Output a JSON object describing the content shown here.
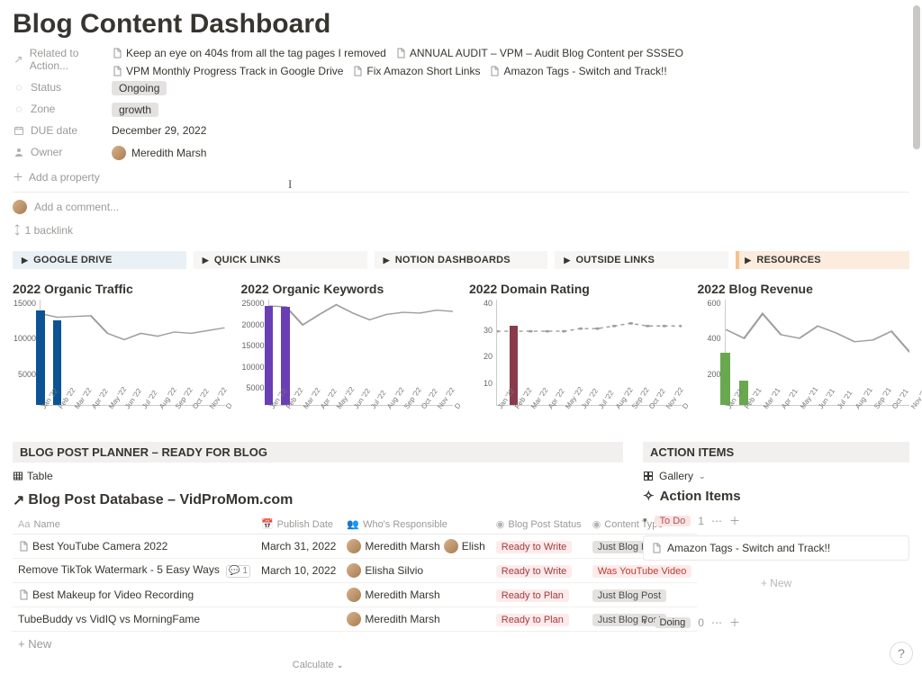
{
  "title": "Blog Content Dashboard",
  "propLabels": {
    "related": "Related to Action...",
    "status": "Status",
    "zone": "Zone",
    "due": "DUE date",
    "owner": "Owner",
    "addProperty": "Add a property",
    "addComment": "Add a comment...",
    "backlink": "1 backlink"
  },
  "related": [
    "Keep an eye on 404s from all the tag pages I removed",
    "ANNUAL AUDIT – VPM – Audit Blog Content per SSSEO",
    "VPM Monthly Progress Track in Google Drive",
    "Fix Amazon Short Links",
    "Amazon Tags - Switch and Track!!"
  ],
  "status": "Ongoing",
  "zone": "growth",
  "dueDate": "December 29, 2022",
  "owner": "Meredith Marsh",
  "toggles": [
    "GOOGLE DRIVE",
    "QUICK LINKS",
    "NOTION DASHBOARDS",
    "OUTSIDE LINKS",
    "RESOURCES"
  ],
  "charts": {
    "months22": [
      "Jan '22",
      "Feb '22",
      "Mar '22",
      "Apr '22",
      "May '22",
      "Jun '22",
      "Jul '22",
      "Aug '22",
      "Sep '22",
      "Oct '22",
      "Nov '22",
      "D"
    ],
    "months21": [
      "Jan '21",
      "Feb '21",
      "Mar '21",
      "Apr '21",
      "May '21",
      "Jun '21",
      "Jul '21",
      "Aug '21",
      "Sep '21",
      "Oct '21",
      "Nov '21"
    ],
    "traffic": {
      "title": "2022 Organic Traffic",
      "ymax": 15000,
      "yTicks": [
        "15000",
        "10000",
        "5000"
      ],
      "line": [
        13000,
        12500,
        12600,
        12700,
        10200,
        9300,
        10200,
        9800,
        10400,
        10200,
        10600,
        11000
      ],
      "bars": [
        {
          "i": 0,
          "v": 13500
        },
        {
          "i": 1,
          "v": 12000
        }
      ],
      "barColor": "#0b5394",
      "lineColor": "#9e9e9e"
    },
    "keywords": {
      "title": "2022 Organic Keywords",
      "ymax": 25000,
      "yTicks": [
        "25000",
        "20000",
        "15000",
        "10000",
        "5000"
      ],
      "line": [
        23500,
        23300,
        19000,
        21500,
        23800,
        21800,
        20200,
        21500,
        22000,
        21800,
        22500,
        22200
      ],
      "bars": [
        {
          "i": 0,
          "v": 23500
        },
        {
          "i": 1,
          "v": 23300
        }
      ],
      "barColor": "#6a3fb5",
      "lineColor": "#9e9e9e"
    },
    "domain": {
      "title": "2022 Domain Rating",
      "ymax": 40,
      "yTicks": [
        "40",
        "30",
        "20",
        "10"
      ],
      "line": [
        28,
        28,
        28,
        28,
        28,
        29,
        29,
        30,
        31,
        30,
        30,
        30
      ],
      "dashed": true,
      "bars": [
        {
          "i": 1,
          "v": 30
        }
      ],
      "barColor": "#8a3b4b",
      "lineColor": "#9e9e9e"
    },
    "revenue": {
      "title": "2022 Blog Revenue",
      "ymax": 600,
      "yTicks": [
        "600",
        "400",
        "200"
      ],
      "line": [
        430,
        380,
        520,
        400,
        380,
        450,
        410,
        360,
        370,
        420,
        300
      ],
      "bars": [
        {
          "i": 0,
          "v": 300
        },
        {
          "i": 1,
          "v": 140
        }
      ],
      "barColor": "#6aa84f",
      "lineColor": "#9e9e9e",
      "months": "months21"
    }
  },
  "planner": {
    "header": "BLOG POST PLANNER – READY FOR BLOG",
    "view": "Table",
    "dbTitle": "Blog Post Database – VidProMom.com",
    "cols": [
      "Name",
      "Publish Date",
      "Who's Responsible",
      "Blog Post Status",
      "Content Type"
    ],
    "rows": [
      {
        "name": "Best YouTube Camera 2022",
        "date": "March 31, 2022",
        "who": [
          "Meredith Marsh",
          "Elish"
        ],
        "status": "Ready to Write",
        "statusClass": "rtw",
        "type": "Just Blog Post",
        "typeClass": "jbp",
        "icon": true
      },
      {
        "name": "Remove TikTok Watermark - 5 Easy Ways",
        "date": "March 10, 2022",
        "who": [
          "Elisha Silvio"
        ],
        "status": "Ready to Write",
        "statusClass": "rtw",
        "type": "Was YouTube Video",
        "typeClass": "wyv",
        "badge": "1"
      },
      {
        "name": "Best Makeup for Video Recording",
        "date": "",
        "who": [
          "Meredith Marsh"
        ],
        "status": "Ready to Plan",
        "statusClass": "rtp",
        "type": "Just Blog Post",
        "typeClass": "jbp",
        "icon": true
      },
      {
        "name": "TubeBuddy vs VidIQ vs MorningFame",
        "date": "",
        "who": [
          "Meredith Marsh"
        ],
        "status": "Ready to Plan",
        "statusClass": "rtp",
        "type": "Just Blog Post",
        "typeClass": "jbp"
      }
    ],
    "newRow": "+  New",
    "calc": "Calculate"
  },
  "actions": {
    "header": "ACTION ITEMS",
    "view": "Gallery",
    "title": "Action Items",
    "todoLabel": "To Do",
    "todoCount": "1",
    "card": "Amazon Tags - Switch and Track!!",
    "newLabel": "+  New",
    "doingLabel": "Doing",
    "doingCount": "0"
  }
}
